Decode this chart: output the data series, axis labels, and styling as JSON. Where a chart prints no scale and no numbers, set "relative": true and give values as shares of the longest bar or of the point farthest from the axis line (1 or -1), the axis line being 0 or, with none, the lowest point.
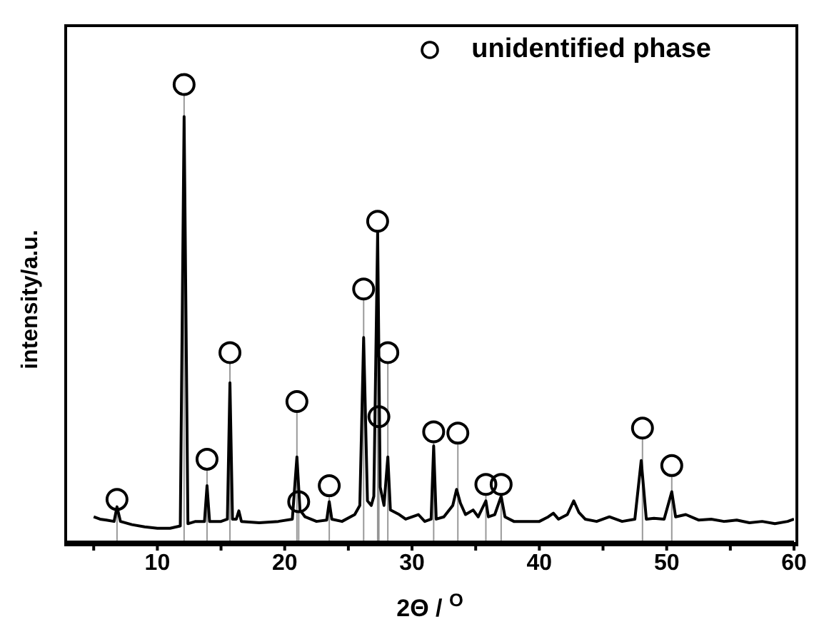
{
  "chart_data": {
    "type": "line",
    "relative": true,
    "xlabel": "2Θ / $^{O}$",
    "ylabel": "intensity/a.u.",
    "xlim": [
      2.8,
      60
    ],
    "xticks": [
      {
        "value": 5,
        "label": null
      },
      10,
      {
        "value": 15,
        "label": null
      },
      20,
      {
        "value": 25,
        "label": null
      },
      30,
      {
        "value": 35,
        "label": null
      },
      40,
      {
        "value": 45,
        "label": null
      },
      50,
      {
        "value": 55,
        "label": null
      },
      60
    ],
    "tick_labels": "x",
    "legend": "top right",
    "marker": "none",
    "line_style": "solid",
    "series": [
      {
        "color": "#000000",
        "x": [
          5.0,
          5.5,
          6.0,
          6.6,
          6.83,
          7.1,
          8,
          9,
          10,
          11,
          11.8,
          12.1,
          12.4,
          13,
          13.7,
          13.9,
          14.1,
          15,
          15.5,
          15.7,
          15.9,
          16.2,
          16.4,
          16.6,
          18,
          19.5,
          20.6,
          20.96,
          21.2,
          21.6,
          22.5,
          23.3,
          23.5,
          23.7,
          24.5,
          25.5,
          25.9,
          26.2,
          26.5,
          26.8,
          27.0,
          27.3,
          27.5,
          27.8,
          28.1,
          28.3,
          29,
          29.5,
          30.5,
          31,
          31.5,
          31.7,
          31.9,
          32.5,
          33.2,
          33.5,
          33.8,
          34.2,
          34.8,
          35.2,
          35.8,
          36.0,
          36.5,
          37.0,
          37.3,
          38,
          39,
          40,
          40.7,
          41.1,
          41.5,
          42.2,
          42.7,
          43.1,
          43.6,
          44.5,
          45.5,
          46.5,
          47.5,
          48.0,
          48.4,
          49,
          49.8,
          50.4,
          50.7,
          51.5,
          52.5,
          53.5,
          54.5,
          55.5,
          56.5,
          57.5,
          58.5,
          59.5,
          60
        ],
        "values": [
          0.055,
          0.05,
          0.048,
          0.045,
          0.077,
          0.045,
          0.038,
          0.033,
          0.03,
          0.03,
          0.035,
          0.93,
          0.04,
          0.045,
          0.045,
          0.123,
          0.045,
          0.045,
          0.05,
          0.348,
          0.05,
          0.05,
          0.068,
          0.045,
          0.042,
          0.045,
          0.05,
          0.186,
          0.07,
          0.055,
          0.045,
          0.048,
          0.088,
          0.05,
          0.045,
          0.06,
          0.08,
          0.447,
          0.09,
          0.08,
          0.1,
          0.677,
          0.12,
          0.08,
          0.186,
          0.07,
          0.06,
          0.05,
          0.06,
          0.045,
          0.05,
          0.21,
          0.05,
          0.055,
          0.08,
          0.115,
          0.085,
          0.06,
          0.07,
          0.055,
          0.09,
          0.055,
          0.06,
          0.1,
          0.055,
          0.045,
          0.045,
          0.045,
          0.055,
          0.063,
          0.05,
          0.06,
          0.09,
          0.065,
          0.05,
          0.045,
          0.055,
          0.045,
          0.05,
          0.178,
          0.05,
          0.052,
          0.05,
          0.11,
          0.055,
          0.06,
          0.048,
          0.05,
          0.045,
          0.048,
          0.042,
          0.045,
          0.04,
          0.045,
          0.05
        ]
      },
      {
        "type": "lollipop",
        "name": "unidentified phase",
        "color": "#000000",
        "marker": "circle",
        "x": [
          6.83,
          12.1,
          13.9,
          15.7,
          20.96,
          21.1,
          23.5,
          26.2,
          27.3,
          27.4,
          28.1,
          31.7,
          33.6,
          35.8,
          37.0,
          48.1,
          50.4
        ],
        "values": [
          0.093,
          1,
          0.181,
          0.414,
          0.307,
          0.088,
          0.123,
          0.553,
          0.701,
          0.274,
          0.414,
          0.241,
          0.238,
          0.126,
          0.126,
          0.249,
          0.167
        ]
      }
    ]
  }
}
